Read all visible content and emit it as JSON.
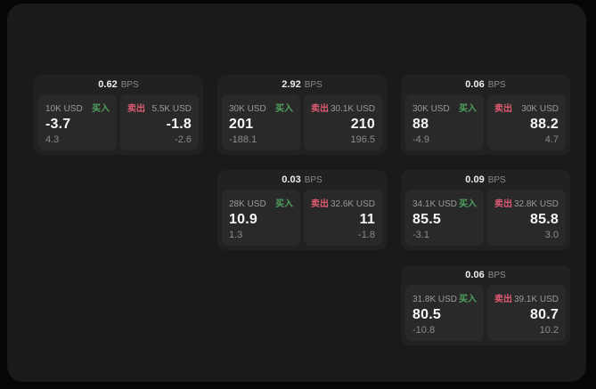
{
  "window": {
    "bg_outer": "#060606",
    "bg_surface": "#1a1a1a",
    "bg_card": "#212121",
    "bg_panel": "#292929"
  },
  "labels": {
    "bps_unit": "BPS",
    "buy": "买入",
    "sell": "卖出"
  },
  "colors": {
    "buy_text": "#4fa25f",
    "sell_text": "#dd5a72",
    "price_text": "#f6f6f6",
    "muted_text": "#9a9a9a"
  },
  "cards": [
    {
      "spread_bps": "0.62",
      "buy": {
        "size": "10K USD",
        "price": "-3.7",
        "change": "4.3"
      },
      "sell": {
        "size": "5.5K USD",
        "price": "-1.8",
        "change": "-2.6"
      }
    },
    {
      "spread_bps": "2.92",
      "buy": {
        "size": "30K USD",
        "price": "201",
        "change": "-188.1"
      },
      "sell": {
        "size": "30.1K USD",
        "price": "210",
        "change": "196.5"
      }
    },
    {
      "spread_bps": "0.06",
      "buy": {
        "size": "30K USD",
        "price": "88",
        "change": "-4.9"
      },
      "sell": {
        "size": "30K USD",
        "price": "88.2",
        "change": "4.7"
      }
    },
    {
      "spread_bps": "0.03",
      "buy": {
        "size": "28K USD",
        "price": "10.9",
        "change": "1.3"
      },
      "sell": {
        "size": "32.6K USD",
        "price": "11",
        "change": "-1.8"
      }
    },
    {
      "spread_bps": "0.09",
      "buy": {
        "size": "34.1K USD",
        "price": "85.5",
        "change": "-3.1"
      },
      "sell": {
        "size": "32.8K USD",
        "price": "85.8",
        "change": "3.0"
      }
    },
    {
      "spread_bps": "0.06",
      "buy": {
        "size": "31.8K USD",
        "price": "80.5",
        "change": "-10.8"
      },
      "sell": {
        "size": "39.1K USD",
        "price": "80.7",
        "change": "10.2"
      }
    }
  ]
}
